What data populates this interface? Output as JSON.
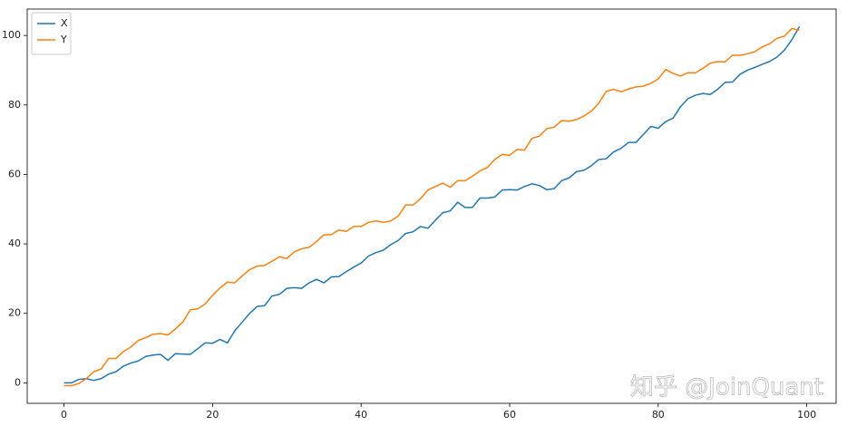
{
  "chart_data": {
    "type": "line",
    "watermark": "知乎 @JoinQuant",
    "x": [
      0,
      1,
      2,
      3,
      4,
      5,
      6,
      7,
      8,
      9,
      10,
      11,
      12,
      13,
      14,
      15,
      16,
      17,
      18,
      19,
      20,
      21,
      22,
      23,
      24,
      25,
      26,
      27,
      28,
      29,
      30,
      31,
      32,
      33,
      34,
      35,
      36,
      37,
      38,
      39,
      40,
      41,
      42,
      43,
      44,
      45,
      46,
      47,
      48,
      49,
      50,
      51,
      52,
      53,
      54,
      55,
      56,
      57,
      58,
      59,
      60,
      61,
      62,
      63,
      64,
      65,
      66,
      67,
      68,
      69,
      70,
      71,
      72,
      73,
      74,
      75,
      76,
      77,
      78,
      79,
      80,
      81,
      82,
      83,
      84,
      85,
      86,
      87,
      88,
      89,
      90,
      91,
      92,
      93,
      94,
      95,
      96,
      97,
      98,
      99
    ],
    "series": [
      {
        "name": "X",
        "color": "#1f77b4",
        "values": [
          0,
          0,
          1,
          1.2,
          0.7,
          1.2,
          2.5,
          3.2,
          4.8,
          5.7,
          6.3,
          7.6,
          8,
          8.2,
          6.5,
          8.4,
          8.3,
          8.2,
          9.8,
          11.5,
          11.4,
          12.5,
          11.5,
          15,
          17.5,
          20,
          22,
          22.2,
          25,
          25.5,
          27.2,
          27.4,
          27.2,
          28.8,
          29.8,
          28.8,
          30.5,
          30.6,
          32,
          33.3,
          34.5,
          36.5,
          37.5,
          38.2,
          39.8,
          41,
          43,
          43.5,
          45,
          44.5,
          46.8,
          49,
          49.5,
          52,
          50.5,
          50.5,
          53.2,
          53.2,
          53.5,
          55.5,
          55.6,
          55.5,
          56.5,
          57.3,
          56.8,
          55.6,
          55.9,
          58.2,
          59,
          60.8,
          61.2,
          62.5,
          64.3,
          64.5,
          66.5,
          67.5,
          69.2,
          69.2,
          71.5,
          73.8,
          73.3,
          75.2,
          76.2,
          79.5,
          81.8,
          82.8,
          83.3,
          83,
          84.5,
          86.5,
          86.6,
          88.8,
          90,
          90.8,
          91.7,
          92.5,
          93.8,
          95.8,
          98.8,
          102.5
        ]
      },
      {
        "name": "Y",
        "color": "#ff7f0e",
        "values": [
          -0.8,
          -0.8,
          -0.2,
          1.2,
          3.2,
          4,
          7,
          7,
          9,
          10.3,
          12.2,
          13,
          14,
          14.2,
          13.8,
          15.5,
          17.5,
          21,
          21.3,
          22.7,
          25.2,
          27.3,
          29,
          28.8,
          30.8,
          32.6,
          33.6,
          33.8,
          35,
          36.3,
          35.8,
          37.7,
          38.6,
          39,
          40.7,
          42.6,
          42.7,
          44,
          43.6,
          45,
          45,
          46.2,
          46.6,
          46.2,
          46.6,
          48,
          51.2,
          51.2,
          53,
          55.5,
          56.5,
          57.5,
          56.3,
          58.2,
          58.2,
          59.5,
          61,
          62,
          64.3,
          65.8,
          65.5,
          67.2,
          67,
          70.4,
          71,
          73.2,
          73.6,
          75.5,
          75.3,
          75.8,
          76.8,
          78.2,
          80.5,
          83.9,
          84.5,
          83.8,
          84.6,
          85.2,
          85.4,
          86.2,
          87.5,
          90.2,
          89.1,
          88.3,
          89.3,
          89.2,
          90.5,
          92,
          92.5,
          92.4,
          94.3,
          94.3,
          94.7,
          95.3,
          96.7,
          97.6,
          99.2,
          99.8,
          102,
          101.5
        ]
      }
    ],
    "xlim": [
      -4.95,
      103.95
    ],
    "xticks": [
      0,
      20,
      40,
      60,
      80,
      100
    ],
    "ylim": [
      -5.9,
      107.6
    ],
    "yticks": [
      0,
      20,
      40,
      60,
      80,
      100
    ],
    "grid": false,
    "legend": "upper-left"
  }
}
